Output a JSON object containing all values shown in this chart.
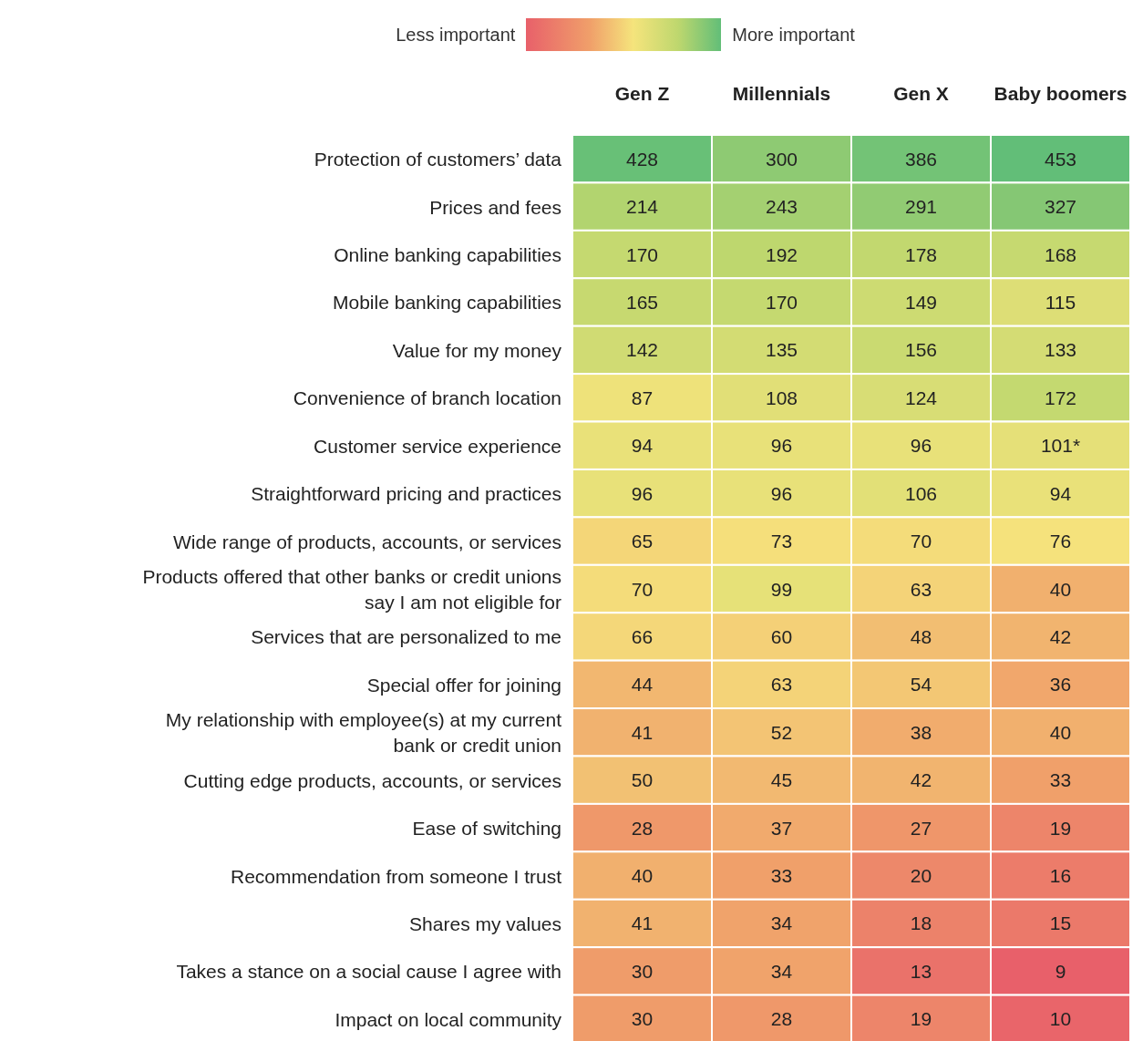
{
  "chart_data": {
    "type": "heatmap",
    "data_labels": true,
    "annotations": [
      "Less important",
      "More important"
    ],
    "categories": [
      "Gen Z",
      "Millennials",
      "Gen X",
      "Baby boomers"
    ],
    "y_categories": [
      "Protection of customers’ data",
      "Prices and fees",
      "Online banking capabilities",
      "Mobile banking capabilities",
      "Value for my money",
      "Convenience of branch location",
      "Customer service experience",
      "Straightforward pricing and practices",
      "Wide range of products, accounts, or services",
      "Products offered that other banks or credit unions say I am not eligible for",
      "Services that are personalized to me",
      "Special offer for joining",
      "My relationship with employee(s) at my current bank or credit union",
      "Cutting edge products, accounts, or services",
      "Ease of switching",
      "Recommendation from someone I trust",
      "Shares my values",
      "Takes a stance on a social cause I agree with",
      "Impact on local community"
    ],
    "cells": [
      [
        428,
        300,
        386,
        453
      ],
      [
        214,
        243,
        291,
        327
      ],
      [
        170,
        192,
        178,
        168
      ],
      [
        165,
        170,
        149,
        115
      ],
      [
        142,
        135,
        156,
        133
      ],
      [
        87,
        108,
        124,
        172
      ],
      [
        94,
        96,
        96,
        101
      ],
      [
        96,
        96,
        106,
        94
      ],
      [
        65,
        73,
        70,
        76
      ],
      [
        70,
        99,
        63,
        40
      ],
      [
        66,
        60,
        48,
        42
      ],
      [
        44,
        63,
        54,
        36
      ],
      [
        41,
        52,
        38,
        40
      ],
      [
        50,
        45,
        42,
        33
      ],
      [
        28,
        37,
        27,
        19
      ],
      [
        40,
        33,
        20,
        16
      ],
      [
        41,
        34,
        18,
        15
      ],
      [
        30,
        34,
        13,
        9
      ],
      [
        30,
        28,
        19,
        10
      ]
    ],
    "cell_labels": [
      [
        "428",
        "300",
        "386",
        "453"
      ],
      [
        "214",
        "243",
        "291",
        "327"
      ],
      [
        "170",
        "192",
        "178",
        "168"
      ],
      [
        "165",
        "170",
        "149",
        "115"
      ],
      [
        "142",
        "135",
        "156",
        "133"
      ],
      [
        "87",
        "108",
        "124",
        "172"
      ],
      [
        "94",
        "96",
        "96",
        "101*"
      ],
      [
        "96",
        "96",
        "106",
        "94"
      ],
      [
        "65",
        "73",
        "70",
        "76"
      ],
      [
        "70",
        "99",
        "63",
        "40"
      ],
      [
        "66",
        "60",
        "48",
        "42"
      ],
      [
        "44",
        "63",
        "54",
        "36"
      ],
      [
        "41",
        "52",
        "38",
        "40"
      ],
      [
        "50",
        "45",
        "42",
        "33"
      ],
      [
        "28",
        "37",
        "27",
        "19"
      ],
      [
        "40",
        "33",
        "20",
        "16"
      ],
      [
        "41",
        "34",
        "18",
        "15"
      ],
      [
        "30",
        "34",
        "13",
        "9"
      ],
      [
        "30",
        "28",
        "19",
        "10"
      ]
    ]
  }
}
